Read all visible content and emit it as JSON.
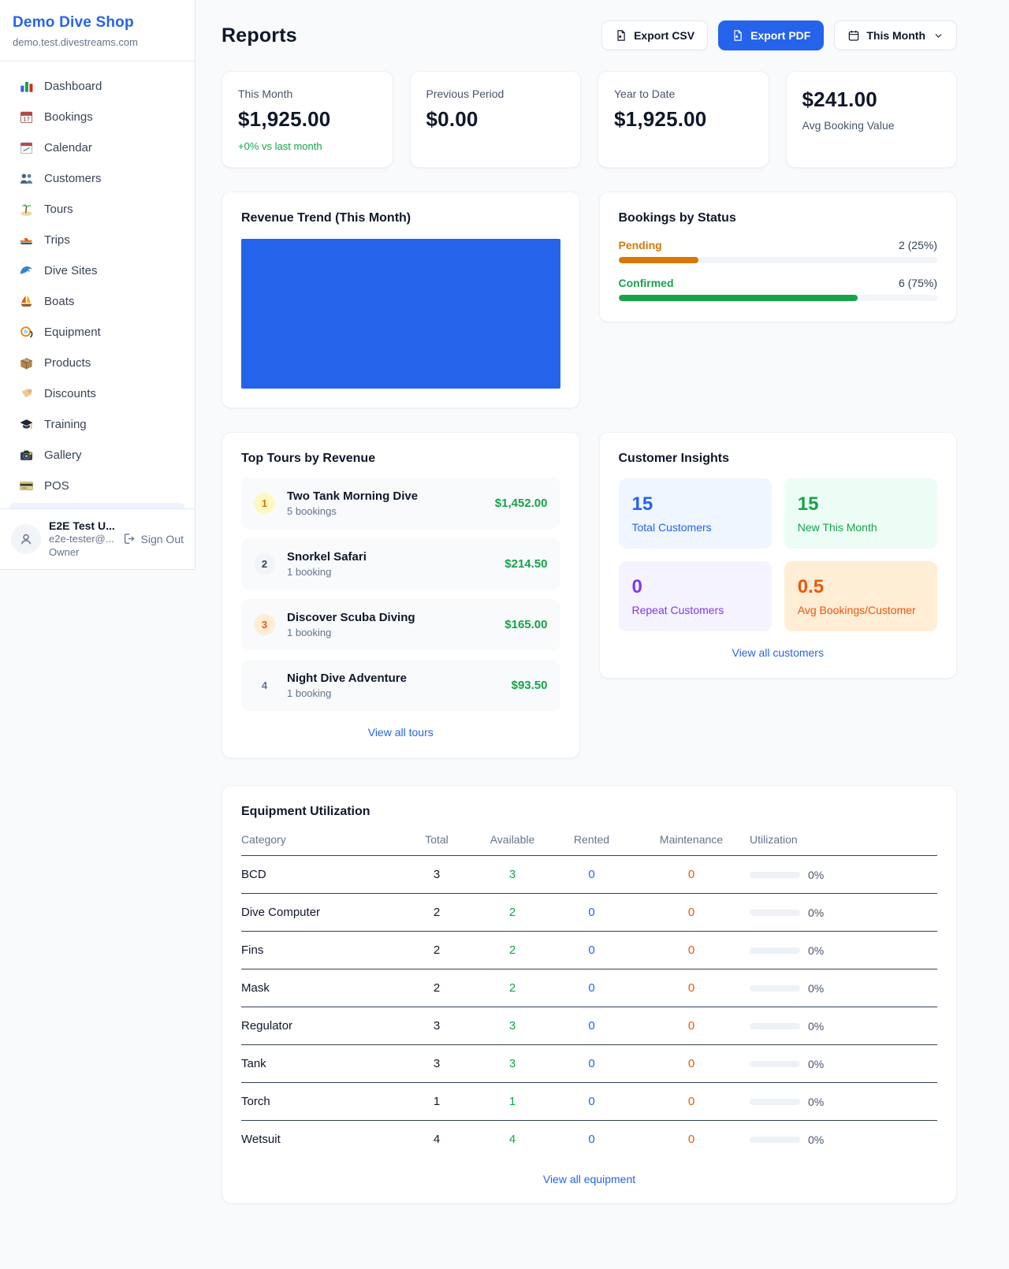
{
  "sidebar": {
    "shop_name": "Demo Dive Shop",
    "shop_domain": "demo.test.divestreams.com",
    "nav_items": [
      {
        "label": "Dashboard",
        "icon_name": "dashboard-bar-chart-icon",
        "icon_ref": "#i-dashboard"
      },
      {
        "label": "Bookings",
        "icon_name": "bookings-calendar-icon",
        "icon_ref": "#i-bookings"
      },
      {
        "label": "Calendar",
        "icon_name": "calendar-icon",
        "icon_ref": "#i-calendar"
      },
      {
        "label": "Customers",
        "icon_name": "customers-people-icon",
        "icon_ref": "#i-customers"
      },
      {
        "label": "Tours",
        "icon_name": "tours-island-icon",
        "icon_ref": "#i-island"
      },
      {
        "label": "Trips",
        "icon_name": "trips-speedboat-icon",
        "icon_ref": "#i-speedboat"
      },
      {
        "label": "Dive Sites",
        "icon_name": "dive-sites-wave-icon",
        "icon_ref": "#i-wave"
      },
      {
        "label": "Boats",
        "icon_name": "boats-sailboat-icon",
        "icon_ref": "#i-sailboat"
      },
      {
        "label": "Equipment",
        "icon_name": "equipment-dive-mask-icon",
        "icon_ref": "#i-mask"
      },
      {
        "label": "Products",
        "icon_name": "products-box-icon",
        "icon_ref": "#i-box"
      },
      {
        "label": "Discounts",
        "icon_name": "discounts-tag-icon",
        "icon_ref": "#i-tag"
      },
      {
        "label": "Training",
        "icon_name": "training-grad-cap-icon",
        "icon_ref": "#i-gradcap"
      },
      {
        "label": "Gallery",
        "icon_name": "gallery-camera-icon",
        "icon_ref": "#i-camera"
      },
      {
        "label": "POS",
        "icon_name": "pos-credit-card-icon",
        "icon_ref": "#i-card"
      }
    ],
    "user": {
      "name": "E2E Test U...",
      "email": "e2e-tester@...",
      "role": "Owner",
      "sign_out_label": "Sign Out"
    }
  },
  "header": {
    "title": "Reports",
    "export_csv_label": "Export CSV",
    "export_pdf_label": "Export PDF",
    "period_label": "This Month"
  },
  "stats": {
    "this_month": {
      "label": "This Month",
      "value": "$1,925.00",
      "delta": "+0% vs last month"
    },
    "previous_period": {
      "label": "Previous Period",
      "value": "$0.00"
    },
    "year_to_date": {
      "label": "Year to Date",
      "value": "$1,925.00"
    },
    "avg_booking": {
      "value": "$241.00",
      "label": "Avg Booking Value"
    }
  },
  "revenue_trend": {
    "title": "Revenue Trend (This Month)"
  },
  "chart_data": {
    "type": "bar",
    "title": "Revenue Trend (This Month)",
    "categories": [
      "This Month"
    ],
    "values": [
      1925
    ],
    "bar_color": "#2563eb",
    "note": "single bar filling entire plot area, no axes or labels visible"
  },
  "bookings_by_status": {
    "title": "Bookings by Status",
    "items": [
      {
        "label": "Pending",
        "count_text": "2 (25%)",
        "percent": 25,
        "color": "#d97706"
      },
      {
        "label": "Confirmed",
        "count_text": "6 (75%)",
        "percent": 75,
        "color": "#16a34a"
      }
    ]
  },
  "top_tours": {
    "title": "Top Tours by Revenue",
    "view_all_label": "View all tours",
    "items": [
      {
        "rank": "1",
        "rank_class": "rank-1",
        "name": "Two Tank Morning Dive",
        "bookings": "5 bookings",
        "revenue": "$1,452.00"
      },
      {
        "rank": "2",
        "rank_class": "rank-2",
        "name": "Snorkel Safari",
        "bookings": "1 booking",
        "revenue": "$214.50"
      },
      {
        "rank": "3",
        "rank_class": "rank-3",
        "name": "Discover Scuba Diving",
        "bookings": "1 booking",
        "revenue": "$165.00"
      },
      {
        "rank": "4",
        "rank_class": "rank-4",
        "name": "Night Dive Adventure",
        "bookings": "1 booking",
        "revenue": "$93.50"
      }
    ]
  },
  "customer_insights": {
    "title": "Customer Insights",
    "view_all_label": "View all customers",
    "tiles": [
      {
        "value": "15",
        "label": "Total Customers",
        "fg": "#2563eb",
        "bg": "#eff6ff"
      },
      {
        "value": "15",
        "label": "New This Month",
        "fg": "#16a34a",
        "bg": "#ecfdf5"
      },
      {
        "value": "0",
        "label": "Repeat Customers",
        "fg": "#7c3aed",
        "bg": "#f5f3ff"
      },
      {
        "value": "0.5",
        "label": "Avg Bookings/Customer",
        "fg": "#ea580c",
        "bg": "#ffedd5"
      }
    ]
  },
  "equipment": {
    "title": "Equipment Utilization",
    "view_all_label": "View all equipment",
    "columns": {
      "category": "Category",
      "total": "Total",
      "available": "Available",
      "rented": "Rented",
      "maintenance": "Maintenance",
      "utilization": "Utilization"
    },
    "rows": [
      {
        "category": "BCD",
        "total": "3",
        "available": "3",
        "rented": "0",
        "maintenance": "0",
        "utilization": "0%",
        "utilization_pct": 0
      },
      {
        "category": "Dive Computer",
        "total": "2",
        "available": "2",
        "rented": "0",
        "maintenance": "0",
        "utilization": "0%",
        "utilization_pct": 0
      },
      {
        "category": "Fins",
        "total": "2",
        "available": "2",
        "rented": "0",
        "maintenance": "0",
        "utilization": "0%",
        "utilization_pct": 0
      },
      {
        "category": "Mask",
        "total": "2",
        "available": "2",
        "rented": "0",
        "maintenance": "0",
        "utilization": "0%",
        "utilization_pct": 0
      },
      {
        "category": "Regulator",
        "total": "3",
        "available": "3",
        "rented": "0",
        "maintenance": "0",
        "utilization": "0%",
        "utilization_pct": 0
      },
      {
        "category": "Tank",
        "total": "3",
        "available": "3",
        "rented": "0",
        "maintenance": "0",
        "utilization": "0%",
        "utilization_pct": 0
      },
      {
        "category": "Torch",
        "total": "1",
        "available": "1",
        "rented": "0",
        "maintenance": "0",
        "utilization": "0%",
        "utilization_pct": 0
      },
      {
        "category": "Wetsuit",
        "total": "4",
        "available": "4",
        "rented": "0",
        "maintenance": "0",
        "utilization": "0%",
        "utilization_pct": 0
      }
    ]
  }
}
